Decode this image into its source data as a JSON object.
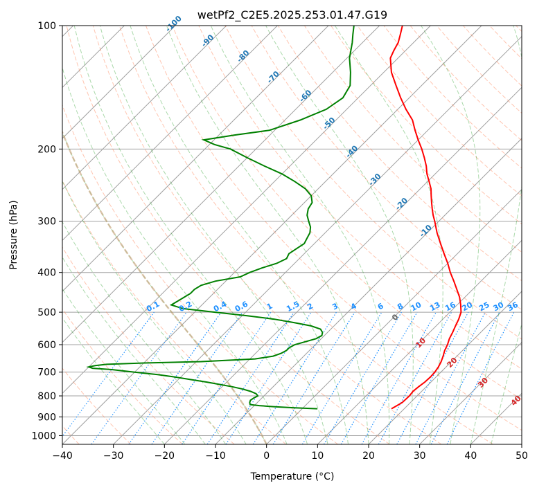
{
  "chart_data": {
    "type": "line",
    "subtype": "skew-t log-p diagram",
    "title": "wetPf2_C2E5.2025.253.01.47.G19",
    "xlabel": "Temperature (°C)",
    "ylabel": "Pressure (hPa)",
    "xlim": [
      -40,
      50
    ],
    "ylim": [
      1050,
      100
    ],
    "y_scale": "log",
    "x_ticks": [
      "−40",
      "−30",
      "−20",
      "−10",
      "0",
      "10",
      "20",
      "30",
      "40",
      "50"
    ],
    "y_ticks": [
      "100",
      "200",
      "300",
      "400",
      "500",
      "600",
      "700",
      "800",
      "900",
      "1000"
    ],
    "grid": true,
    "colors": {
      "temperature": "#ff0000",
      "dewpoint": "#008000",
      "isotherm": "#a0a0a0",
      "dry_adiabat": "#ff7f50",
      "moist_adiabat": "#2ca02c",
      "mixing_ratio": "#1e90ff",
      "isotherm_label_blue": "#1f77b4",
      "isotherm_label_red": "#d62728",
      "wet_bulb_zero": "#c8a078"
    },
    "series": [
      {
        "key": "temperature",
        "pressure": [
          860,
          850,
          830,
          800,
          780,
          760,
          740,
          720,
          700,
          680,
          660,
          640,
          620,
          600,
          580,
          560,
          540,
          520,
          500,
          480,
          460,
          440,
          420,
          400,
          380,
          360,
          340,
          320,
          300,
          290,
          280,
          270,
          260,
          250,
          240,
          230,
          220,
          210,
          200,
          190,
          180,
          170,
          160,
          150,
          140,
          130,
          120,
          115,
          110,
          105,
          100
        ],
        "values": [
          17.5,
          17.8,
          18.4,
          18.5,
          18.3,
          18.5,
          18.8,
          18.9,
          18.8,
          18.5,
          18.0,
          17.3,
          16.5,
          15.9,
          15.1,
          14.5,
          13.8,
          13.1,
          12.2,
          10.7,
          9.0,
          6.9,
          4.7,
          2.3,
          0.0,
          -2.6,
          -5.3,
          -8.1,
          -10.8,
          -12.3,
          -13.7,
          -15.1,
          -16.5,
          -17.9,
          -19.7,
          -21.6,
          -23.3,
          -25.3,
          -27.5,
          -30.0,
          -32.5,
          -35.0,
          -38.4,
          -41.7,
          -45.0,
          -48.5,
          -51.5,
          -52.3,
          -53.0,
          -54.2,
          -55.5
        ]
      },
      {
        "key": "dewpoint",
        "pressure": [
          860,
          855,
          850,
          845,
          840,
          830,
          820,
          810,
          800,
          790,
          780,
          770,
          760,
          750,
          740,
          730,
          720,
          710,
          700,
          690,
          685,
          680,
          675,
          670,
          665,
          660,
          650,
          640,
          630,
          620,
          610,
          600,
          590,
          580,
          570,
          560,
          550,
          540,
          530,
          520,
          510,
          500,
          490,
          480,
          470,
          460,
          450,
          440,
          430,
          420,
          410,
          400,
          390,
          380,
          370,
          360,
          350,
          340,
          330,
          320,
          310,
          300,
          290,
          280,
          270,
          260,
          250,
          240,
          230,
          220,
          210,
          200,
          195,
          190,
          185,
          180,
          170,
          160,
          150,
          140,
          130,
          120,
          110,
          105,
          100
        ],
        "values": [
          3.0,
          -2.0,
          -6.0,
          -9.0,
          -11.0,
          -11.5,
          -11.8,
          -11.6,
          -11.2,
          -12.0,
          -13.5,
          -15.5,
          -18.0,
          -21.0,
          -24.0,
          -27.5,
          -31.0,
          -35.0,
          -40.0,
          -45.0,
          -49.0,
          -50.0,
          -49.0,
          -47.0,
          -40.0,
          -29.0,
          -19.0,
          -16.0,
          -15.0,
          -14.5,
          -14.5,
          -14.0,
          -12.5,
          -11.0,
          -10.5,
          -11.0,
          -12.0,
          -14.5,
          -18.5,
          -23.0,
          -29.0,
          -36.0,
          -43.0,
          -46.0,
          -45.5,
          -45.0,
          -44.5,
          -44.5,
          -44.0,
          -42.0,
          -38.0,
          -37.0,
          -35.5,
          -33.5,
          -32.5,
          -33.0,
          -32.5,
          -32.0,
          -32.5,
          -33.0,
          -34.0,
          -35.5,
          -37.0,
          -38.0,
          -38.5,
          -40.0,
          -42.5,
          -46.0,
          -50.0,
          -55.0,
          -60.0,
          -65.0,
          -69.0,
          -72.0,
          -67.0,
          -61.0,
          -57.0,
          -54.0,
          -53.0,
          -54.0,
          -56.5,
          -59.5,
          -62.0,
          -63.5,
          -65.0
        ]
      }
    ],
    "isotherm_labels_blue": [
      "-100",
      "-90",
      "-80",
      "-70",
      "-60",
      "-50",
      "-40",
      "-30",
      "-20",
      "-10"
    ],
    "isotherm_labels_blue_temps": [
      -100,
      -90,
      -80,
      -70,
      -60,
      -50,
      -40,
      -30,
      -20,
      -10
    ],
    "isotherm_labels_red": [
      "0",
      "10",
      "20",
      "30",
      "40"
    ],
    "isotherm_labels_red_temps": [
      0,
      10,
      20,
      30,
      40
    ],
    "mixing_ratio_labels": [
      "0.1",
      "0.2",
      "0.4",
      "0.6",
      "1",
      "1.5",
      "2",
      "3",
      "4",
      "6",
      "8",
      "10",
      "13",
      "16",
      "20",
      "25",
      "30",
      "36"
    ],
    "mixing_ratio_values": [
      0.1,
      0.2,
      0.4,
      0.6,
      1,
      1.5,
      2,
      3,
      4,
      6,
      8,
      10,
      13,
      16,
      20,
      25,
      30,
      36
    ]
  }
}
